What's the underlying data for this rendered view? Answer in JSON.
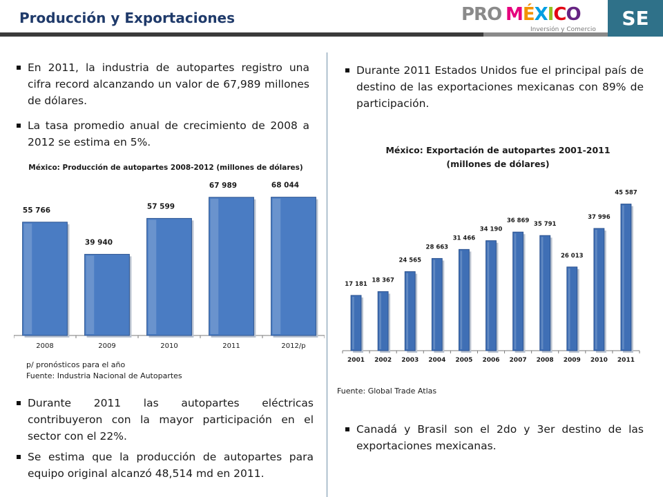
{
  "header": {
    "title": "Producción y Exportaciones",
    "logo_pro": "PRO",
    "logo_mexico": "MÉXICO",
    "logo_sub": "Inversión y Comercio",
    "badge": "SE",
    "accent_color": "#1f3a6a",
    "badge_color": "#2f7189"
  },
  "left": {
    "bullets": [
      "En 2011, la industria de autopartes registro una cifra record alcanzando un valor de 67,989 millones de dólares.",
      "La tasa promedio anual de crecimiento de 2008 a 2012 se estima en 5%.",
      "Durante 2011 las autopartes eléctricas contribuyeron con la mayor participación en el sector con el 22%.",
      "Se estima que la producción de autopartes para equipo original alcanzó 48,514 md en 2011."
    ],
    "note1": "p/ pronósticos para el año",
    "note2": "Fuente: Industria Nacional de Autopartes"
  },
  "right": {
    "bullets": [
      "Durante 2011 Estados Unidos fue el principal país de destino de las exportaciones mexicanas con 89% de participación.",
      "Canadá y Brasil son el 2do y 3er destino de las exportaciones mexicanas."
    ],
    "source": "Fuente: Global Trade Atlas"
  },
  "chart_data": [
    {
      "type": "bar",
      "title": "México: Producción de autopartes 2008-2012 (millones de dólares)",
      "categories": [
        "2008",
        "2009",
        "2010",
        "2011",
        "2012/p"
      ],
      "values": [
        55766,
        39940,
        57599,
        67989,
        68044
      ],
      "labels": [
        "55 766",
        "39 940",
        "57 599",
        "67 989",
        "68 044"
      ],
      "ylim": [
        0,
        72000
      ],
      "bar_color": "#4a7cc3",
      "grid": false,
      "legend": "none"
    },
    {
      "type": "bar",
      "title_line1": "México: Exportación de autopartes 2001-2011",
      "title_line2": "(millones de dólares)",
      "categories": [
        "2001",
        "2002",
        "2003",
        "2004",
        "2005",
        "2006",
        "2007",
        "2008",
        "2009",
        "2010",
        "2011"
      ],
      "values": [
        17181,
        18367,
        24565,
        28663,
        31466,
        34190,
        36869,
        35791,
        26013,
        37996,
        45587
      ],
      "labels": [
        "17 181",
        "18 367",
        "24 565",
        "28 663",
        "31 466",
        "34 190",
        "36 869",
        "35 791",
        "26 013",
        "37 996",
        "45 587"
      ],
      "ylim": [
        0,
        50000
      ],
      "bar_color": "#3f6fb5",
      "grid": false,
      "legend": "none"
    }
  ]
}
